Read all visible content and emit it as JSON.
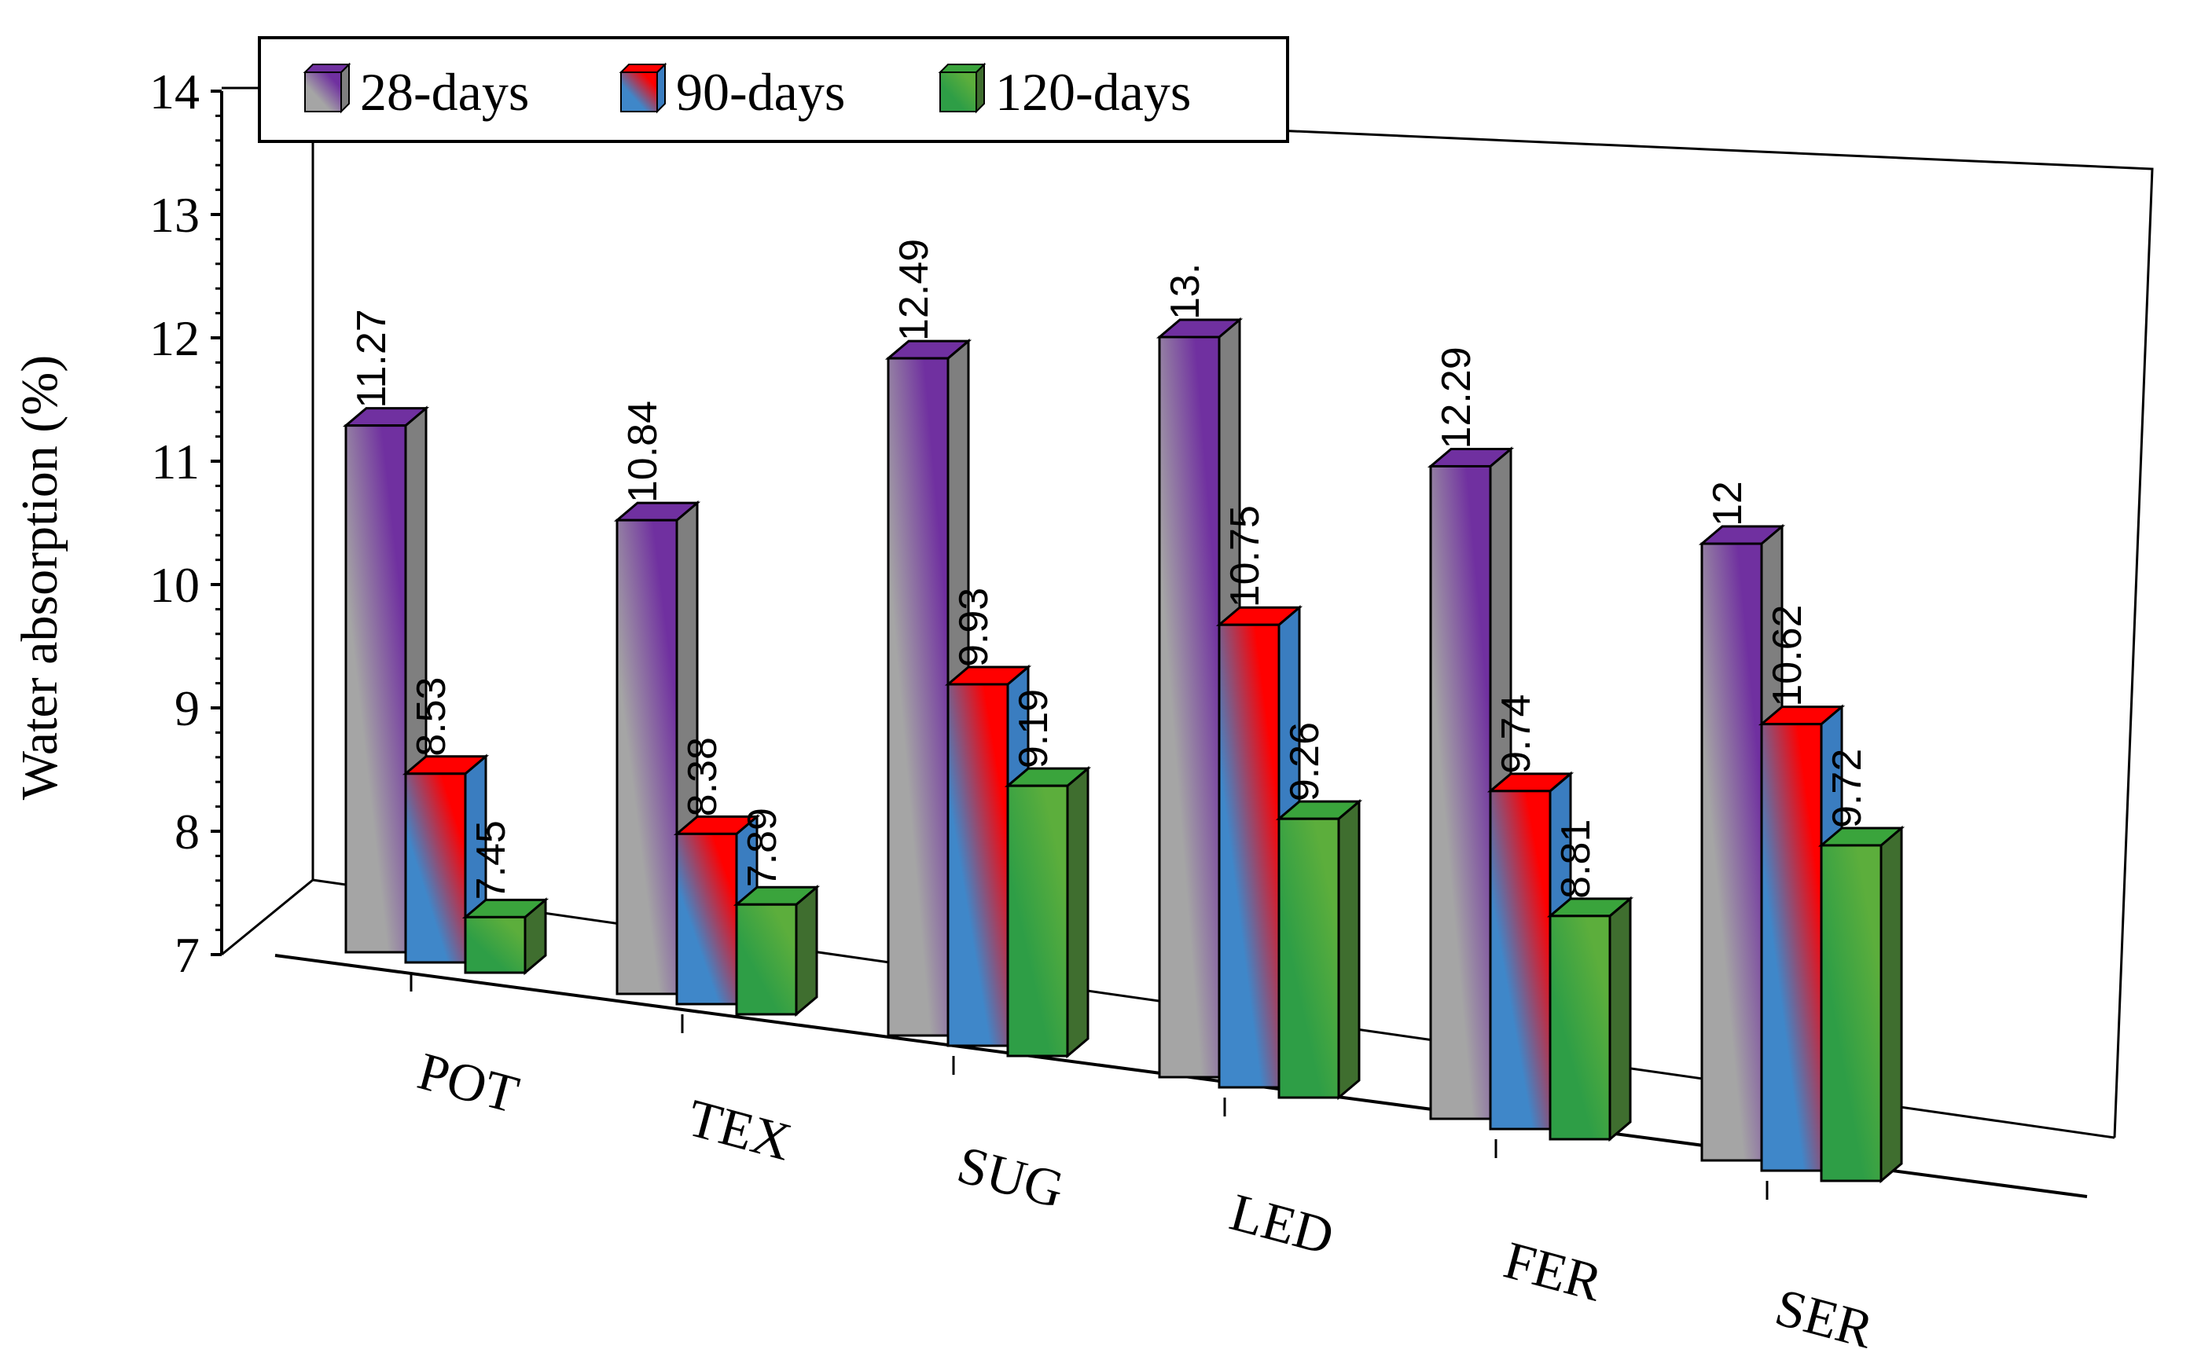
{
  "chart_data": {
    "type": "bar",
    "style": "3d-clustered",
    "title": "",
    "xlabel": "",
    "ylabel": "Water absorption (%)",
    "ylim": [
      7,
      14
    ],
    "yticks": [
      7,
      8,
      9,
      10,
      11,
      12,
      13,
      14
    ],
    "categories": [
      "POT",
      "TEX",
      "SUG",
      "LED",
      "FER",
      "SER"
    ],
    "series": [
      {
        "name": "28-days",
        "values": [
          11.27,
          10.84,
          12.49,
          13.0,
          12.29,
          12.0
        ],
        "labels": [
          "11.27",
          "10.84",
          "12.49",
          "13.",
          "12.29",
          "12"
        ],
        "colors": {
          "front_a": "#a5a5a5",
          "front_b": "#7030a0",
          "top": "#7030a0",
          "side": "#7f7f7f"
        }
      },
      {
        "name": "90-days",
        "values": [
          8.53,
          8.38,
          9.93,
          10.75,
          9.74,
          10.62
        ],
        "labels": [
          "8.53",
          "8.38",
          "9.93",
          "10.75",
          "9.74",
          "10.62"
        ],
        "colors": {
          "front_a": "#3f87c9",
          "front_b": "#ff0000",
          "top": "#ff0000",
          "side": "#3a7dc0"
        }
      },
      {
        "name": "120-days",
        "values": [
          7.45,
          7.89,
          9.19,
          9.26,
          8.81,
          9.72
        ],
        "labels": [
          "7.45",
          "7.89",
          "9.19",
          "9.26",
          "8.81",
          "9.72"
        ],
        "colors": {
          "front_a": "#2e9e46",
          "front_b": "#5cae3c",
          "top": "#3aa43c",
          "side": "#3f6e2f"
        }
      }
    ],
    "legend": {
      "position": "top-left",
      "entries": [
        "28-days",
        "90-days",
        "120-days"
      ]
    }
  }
}
